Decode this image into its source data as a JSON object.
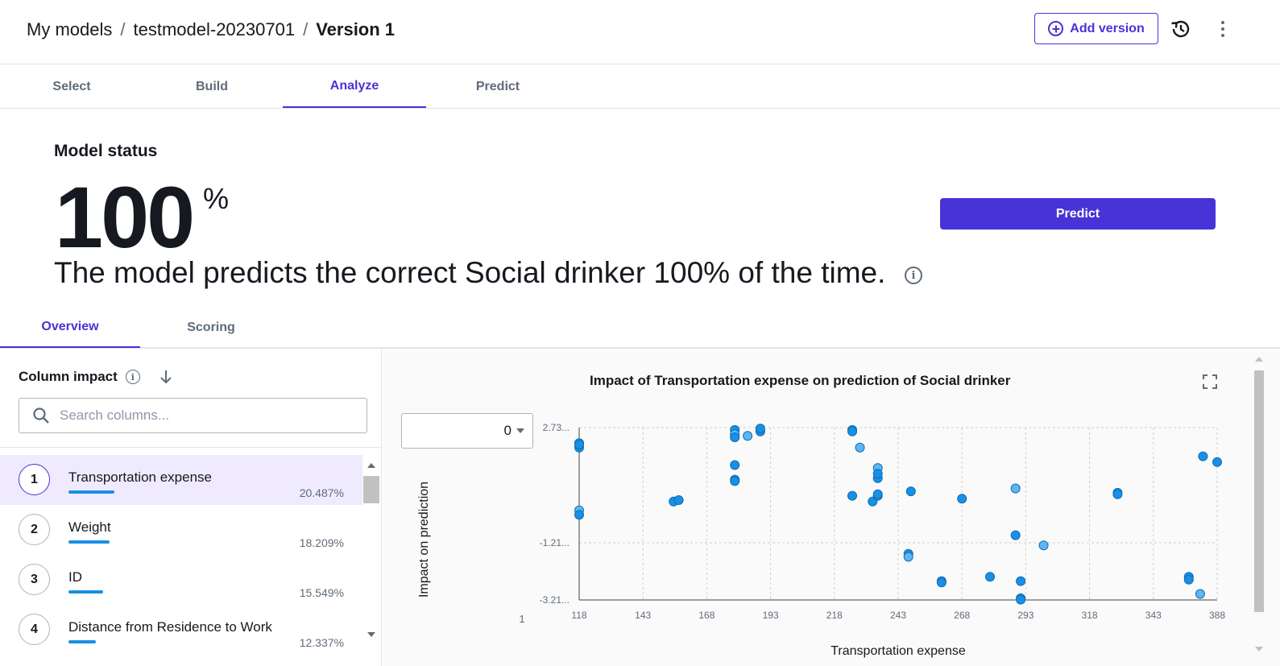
{
  "header": {
    "breadcrumb": [
      "My models",
      "testmodel-20230701",
      "Version 1"
    ],
    "breadcrumb_separator": "/",
    "add_version_label": "Add version",
    "icons": {
      "add": "plus-circle-icon",
      "history": "history-icon",
      "more": "kebab-icon"
    }
  },
  "tabs": [
    {
      "label": "Select",
      "active": false
    },
    {
      "label": "Build",
      "active": false
    },
    {
      "label": "Analyze",
      "active": true
    },
    {
      "label": "Predict",
      "active": false
    }
  ],
  "model_status": {
    "heading": "Model status",
    "value": "100",
    "unit": "%",
    "sentence": "The model predicts the correct Social drinker 100% of the time.",
    "predict_label": "Predict"
  },
  "subtabs": [
    {
      "label": "Overview",
      "active": true
    },
    {
      "label": "Scoring",
      "active": false
    }
  ],
  "column_impact": {
    "title": "Column impact",
    "search_placeholder": "Search columns...",
    "items": [
      {
        "rank": "1",
        "name": "Transportation expense",
        "percent": "20.487%",
        "value": 20.487,
        "selected": true
      },
      {
        "rank": "2",
        "name": "Weight",
        "percent": "18.209%",
        "value": 18.209,
        "selected": false
      },
      {
        "rank": "3",
        "name": "ID",
        "percent": "15.549%",
        "value": 15.549,
        "selected": false
      },
      {
        "rank": "4",
        "name": "Distance from Residence to Work",
        "percent": "12.337%",
        "value": 12.337,
        "selected": false
      }
    ]
  },
  "chart_panel": {
    "class_select_value": "0"
  },
  "colors": {
    "accent": "#4733d6",
    "bar": "#1a8fe3",
    "point": "#1a8fe3",
    "point_light": "#5fb6ef"
  },
  "chart_data": {
    "type": "scatter",
    "title": "Impact of Transportation expense on prediction of Social drinker",
    "xlabel": "Transportation expense",
    "ylabel": "Impact on prediction",
    "x_ticks": [
      "118",
      "143",
      "168",
      "193",
      "218",
      "243",
      "268",
      "293",
      "318",
      "343",
      "388"
    ],
    "x_tick_values": [
      118,
      143,
      168,
      193,
      218,
      243,
      268,
      293,
      318,
      343,
      388
    ],
    "y_ticks": [
      "2.73...",
      "-1.21...",
      "-3.21..."
    ],
    "y_tick_values": [
      2.73,
      -1.21,
      -3.21
    ],
    "extra_label": "1",
    "xlim": [
      118,
      388
    ],
    "ylim": [
      -3.21,
      2.73
    ],
    "grid": true,
    "points": [
      {
        "x": 118,
        "y": 2.2
      },
      {
        "x": 118,
        "y": 2.05
      },
      {
        "x": 118,
        "y": 2.15
      },
      {
        "x": 118,
        "y": -0.1
      },
      {
        "x": 118,
        "y": -0.25
      },
      {
        "x": 155,
        "y": 0.2
      },
      {
        "x": 157,
        "y": 0.25
      },
      {
        "x": 179,
        "y": 2.65
      },
      {
        "x": 179,
        "y": 2.5
      },
      {
        "x": 179,
        "y": 2.4
      },
      {
        "x": 179,
        "y": 1.45
      },
      {
        "x": 179,
        "y": 0.95
      },
      {
        "x": 179,
        "y": 0.9
      },
      {
        "x": 184,
        "y": 2.45
      },
      {
        "x": 189,
        "y": 2.6
      },
      {
        "x": 189,
        "y": 2.7
      },
      {
        "x": 225,
        "y": 2.65
      },
      {
        "x": 225,
        "y": 2.6
      },
      {
        "x": 228,
        "y": 2.05
      },
      {
        "x": 225,
        "y": 0.4
      },
      {
        "x": 233,
        "y": 0.2
      },
      {
        "x": 235,
        "y": 0.4
      },
      {
        "x": 235,
        "y": 0.45
      },
      {
        "x": 235,
        "y": 1.35
      },
      {
        "x": 235,
        "y": 1.0
      },
      {
        "x": 235,
        "y": 1.15
      },
      {
        "x": 248,
        "y": 0.55
      },
      {
        "x": 247,
        "y": -1.6
      },
      {
        "x": 247,
        "y": -1.7
      },
      {
        "x": 260,
        "y": -2.55
      },
      {
        "x": 260,
        "y": -2.6
      },
      {
        "x": 268,
        "y": 0.3
      },
      {
        "x": 279,
        "y": -2.4
      },
      {
        "x": 289,
        "y": 0.65
      },
      {
        "x": 289,
        "y": -0.95
      },
      {
        "x": 291,
        "y": -2.55
      },
      {
        "x": 291,
        "y": -3.15
      },
      {
        "x": 291,
        "y": -3.2
      },
      {
        "x": 300,
        "y": -1.3
      },
      {
        "x": 329,
        "y": 0.5
      },
      {
        "x": 329,
        "y": 0.45
      },
      {
        "x": 368,
        "y": -2.4
      },
      {
        "x": 368,
        "y": -2.5
      },
      {
        "x": 376,
        "y": -3.0
      },
      {
        "x": 378,
        "y": 1.75
      },
      {
        "x": 388,
        "y": 1.55
      }
    ]
  }
}
